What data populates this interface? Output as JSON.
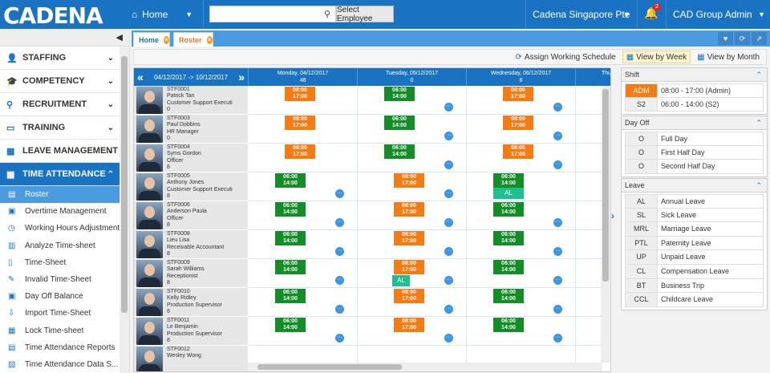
{
  "app": {
    "logo": "CADENA"
  },
  "topbar": {
    "home": "Home",
    "select_employee": "Select Employee",
    "search_placeholder": "",
    "company": "Cadena Singapore Pte",
    "notifications": "2",
    "user": "CAD Group Admin"
  },
  "sidebar": {
    "sections": [
      {
        "label": "STAFFING",
        "icon": "user-icon"
      },
      {
        "label": "COMPETENCY",
        "icon": "graduation-cap-icon"
      },
      {
        "label": "RECRUITMENT",
        "icon": "search-icon"
      },
      {
        "label": "TRAINING",
        "icon": "monitor-icon"
      },
      {
        "label": "LEAVE MANAGEMENT",
        "icon": "calendar-icon"
      },
      {
        "label": "TIME ATTENDANCE",
        "icon": "calendar-clock-icon"
      }
    ],
    "items": [
      "Roster",
      "Overtime Management",
      "Working Hours Adjustment",
      "Analyze Time-sheet",
      "Time-Sheet",
      "Invalid Time-Sheet",
      "Day Off Balance",
      "Import Time-Sheet",
      "Lock Time-sheet",
      "Time Attendance Reports",
      "Time Attendance Data S..."
    ]
  },
  "tabs": [
    "Home",
    "Roster"
  ],
  "toolbar": {
    "assign": "Assign Working Schedule",
    "by_week": "View by Week",
    "by_month": "View by Month"
  },
  "grid": {
    "range": "04/12/2017 -> 10/12/2017",
    "days": [
      {
        "name": "Monday, 04/12/2017",
        "count": "48"
      },
      {
        "name": "Tuesday, 05/12/2017",
        "count": "0"
      },
      {
        "name": "Wednesday, 06/12/2017",
        "count": "8"
      },
      {
        "name": "Thu",
        "count": ""
      }
    ],
    "employees": [
      {
        "id": "STF0001",
        "name": "Patrick Tan",
        "title": "Customer Support Executi",
        "n": "0"
      },
      {
        "id": "STF0003",
        "name": "Paul Dobbins",
        "title": "HR Manager",
        "n": "0"
      },
      {
        "id": "STF0004",
        "name": "Syms Gordon",
        "title": "Officer",
        "n": "8"
      },
      {
        "id": "STF0005",
        "name": "Anthony Jones",
        "title": "Customer Support Executi",
        "n": "8"
      },
      {
        "id": "STF0006",
        "name": "Anderson Paula",
        "title": "Officer",
        "n": "8"
      },
      {
        "id": "STF0008",
        "name": "Lieu Lisa",
        "title": "Receivable Accountant",
        "n": "8"
      },
      {
        "id": "STF0009",
        "name": "Sarah Williams",
        "title": "Receptionist",
        "n": "8"
      },
      {
        "id": "STF0010",
        "name": "Kelly Ridley",
        "title": "Production Supervisor",
        "n": "8"
      },
      {
        "id": "STF0011",
        "name": "Le Benjamin",
        "title": "Production Supervisor",
        "n": "8"
      },
      {
        "id": "STF0012",
        "name": "Wesley Wong",
        "title": "",
        "n": ""
      }
    ],
    "al": "AL",
    "s1_start": "08:00",
    "s1_end": "17:00",
    "s2_start": "06:00",
    "s2_end": "14:00"
  },
  "shift_panel": {
    "title": "Shift",
    "rows": [
      {
        "code": "ADM",
        "label": "08:00 - 17:00 (Admin)"
      },
      {
        "code": "S2",
        "label": "06:00 - 14:00 (S2)"
      }
    ]
  },
  "dayoff_panel": {
    "title": "Day Off",
    "rows": [
      {
        "code": "O",
        "label": "Full Day"
      },
      {
        "code": "O",
        "label": "First Half Day"
      },
      {
        "code": "O",
        "label": "Second Half Day"
      }
    ]
  },
  "leave_panel": {
    "title": "Leave",
    "rows": [
      {
        "code": "AL",
        "label": "Annual Leave"
      },
      {
        "code": "SL",
        "label": "Sick Leave"
      },
      {
        "code": "MRL",
        "label": "Marriage Leave"
      },
      {
        "code": "PTL",
        "label": "Paternity Leave"
      },
      {
        "code": "UP",
        "label": "Unpaid Leave"
      },
      {
        "code": "CL",
        "label": "Compensation Leave"
      },
      {
        "code": "BT",
        "label": "Business Trip"
      },
      {
        "code": "CCL",
        "label": "Childcare Leave"
      }
    ]
  },
  "colors": {
    "primary": "#1a73c2",
    "shift_orange": "#f57c14",
    "shift_green": "#148c28",
    "leave_teal": "#1fbf8f"
  }
}
